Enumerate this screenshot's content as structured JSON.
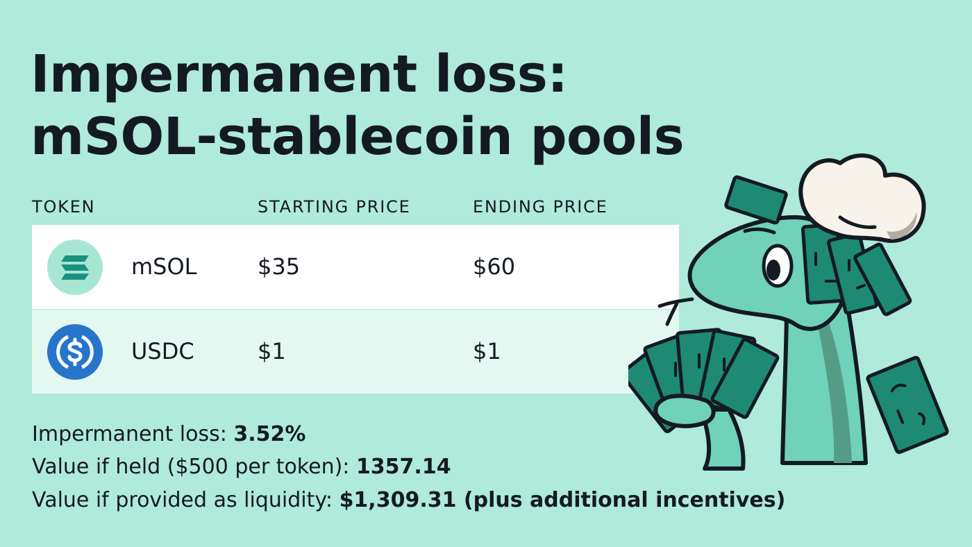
{
  "title": {
    "line1": "Impermanent loss:",
    "line2": "mSOL-stablecoin pools"
  },
  "table": {
    "headers": [
      "TOKEN",
      "STARTING PRICE",
      "ENDING PRICE"
    ],
    "rows": [
      {
        "token": "mSOL",
        "icon": "msol-logo-icon",
        "starting_price": "$35",
        "ending_price": "$60"
      },
      {
        "token": "USDC",
        "icon": "usdc-logo-icon",
        "starting_price": "$1",
        "ending_price": "$1"
      }
    ]
  },
  "summary": {
    "loss_label": "Impermanent loss: ",
    "loss_value": "3.52%",
    "held_label": "Value if held ($500 per token): ",
    "held_value": "1357.14",
    "liquidity_label": "Value if provided as liquidity: ",
    "liquidity_value": "$1,309.31 (plus additional incentives)"
  },
  "illustration": "chef-hat-sea-creature-holding-cash-mascot",
  "colors": {
    "background": "#afeadb",
    "text": "#141a22",
    "row_white": "#ffffff",
    "row_mint": "#e2f8f1",
    "msol_icon_bg": "#a8e6d4",
    "msol_icon_bars": "#19917e",
    "usdc_blue": "#2775ca",
    "mascot_body": "#6fd2b9",
    "cash_green": "#1e8a74",
    "hat": "#f7f3ea"
  }
}
